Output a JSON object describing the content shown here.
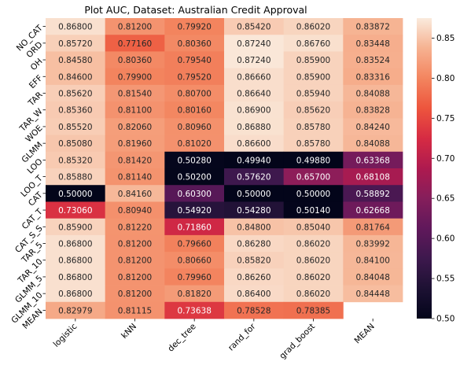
{
  "chart_data": {
    "type": "heatmap",
    "title": "Plot AUC, Dataset: Australian Credit Approval",
    "xlabel": "",
    "ylabel": "",
    "x_categories": [
      "logistic",
      "kNN",
      "dec_tree",
      "rand_for",
      "grad_boost",
      "MEAN"
    ],
    "y_categories": [
      "NO_CAT",
      "ORD",
      "OH",
      "EFF",
      "TAR",
      "TAR_W",
      "WOE",
      "GLMM",
      "LOO",
      "LOO_T",
      "CAT",
      "CAT_T",
      "CAT_S_S",
      "TAR_5",
      "TAR_10",
      "GLMM_5",
      "GLMM_10",
      "MEAN"
    ],
    "values": [
      [
        "0.86800",
        "0.81200",
        "0.79920",
        "0.85420",
        "0.86020",
        "0.83872"
      ],
      [
        "0.85720",
        "0.77160",
        "0.80360",
        "0.87240",
        "0.86760",
        "0.83448"
      ],
      [
        "0.84580",
        "0.80360",
        "0.79540",
        "0.87240",
        "0.85900",
        "0.83524"
      ],
      [
        "0.84600",
        "0.79900",
        "0.79520",
        "0.86660",
        "0.85900",
        "0.83316"
      ],
      [
        "0.85620",
        "0.81540",
        "0.80700",
        "0.86640",
        "0.85940",
        "0.84088"
      ],
      [
        "0.85360",
        "0.81100",
        "0.80160",
        "0.86900",
        "0.85620",
        "0.83828"
      ],
      [
        "0.85520",
        "0.82060",
        "0.80960",
        "0.86880",
        "0.85780",
        "0.84240"
      ],
      [
        "0.85080",
        "0.81960",
        "0.81020",
        "0.86600",
        "0.85780",
        "0.84088"
      ],
      [
        "0.85320",
        "0.81420",
        "0.50280",
        "0.49940",
        "0.49880",
        "0.63368"
      ],
      [
        "0.85880",
        "0.81140",
        "0.50200",
        "0.57620",
        "0.65700",
        "0.68108"
      ],
      [
        "0.50000",
        "0.84160",
        "0.60300",
        "0.50000",
        "0.50000",
        "0.58892"
      ],
      [
        "0.73060",
        "0.80940",
        "0.54920",
        "0.54280",
        "0.50140",
        "0.62668"
      ],
      [
        "0.85900",
        "0.81220",
        "0.71860",
        "0.84800",
        "0.85040",
        "0.81764"
      ],
      [
        "0.86800",
        "0.81200",
        "0.79660",
        "0.86280",
        "0.86020",
        "0.83992"
      ],
      [
        "0.86800",
        "0.81200",
        "0.80660",
        "0.85820",
        "0.86020",
        "0.84100"
      ],
      [
        "0.86800",
        "0.81200",
        "0.79960",
        "0.86260",
        "0.86020",
        "0.84048"
      ],
      [
        "0.86800",
        "0.81200",
        "0.81820",
        "0.86400",
        "0.86020",
        "0.84448"
      ],
      [
        "0.82979",
        "0.81115",
        "0.73638",
        "0.78528",
        "0.78385",
        null
      ]
    ],
    "colorbar": {
      "min": 0.5,
      "max": 0.875,
      "ticks": [
        "0.50",
        "0.55",
        "0.60",
        "0.65",
        "0.70",
        "0.75",
        "0.80",
        "0.85"
      ]
    },
    "colormap": "rocket",
    "grid": false
  }
}
